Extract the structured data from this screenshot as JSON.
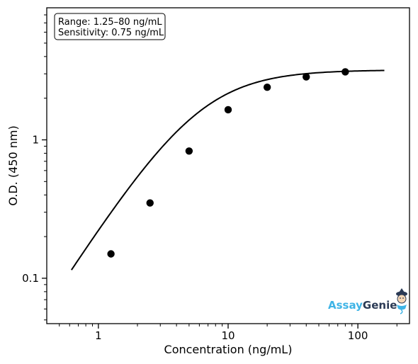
{
  "chart_data": {
    "type": "scatter",
    "xlabel": "Concentration (ng/mL)",
    "ylabel": "O.D. (450 nm)",
    "xscale": "log",
    "yscale": "log",
    "xlim": [
      0.4,
      250
    ],
    "ylim": [
      0.047,
      9
    ],
    "x_ticks": [
      1,
      10,
      100
    ],
    "x_tick_labels": [
      "1",
      "10",
      "100"
    ],
    "y_ticks": [
      0.1,
      1
    ],
    "y_tick_labels": [
      "0.1",
      "1"
    ],
    "grid": false,
    "series": [
      {
        "values": [
          {
            "x": 1.25,
            "y": 0.15
          },
          {
            "x": 2.5,
            "y": 0.35
          },
          {
            "x": 5,
            "y": 0.83
          },
          {
            "x": 10,
            "y": 1.65
          },
          {
            "x": 20,
            "y": 2.4
          },
          {
            "x": 40,
            "y": 2.85
          },
          {
            "x": 80,
            "y": 3.1
          }
        ]
      }
    ],
    "fit_curve": {
      "model": "4PL",
      "x_range": [
        0.62,
        160
      ],
      "bottom": 0,
      "top": 3.2,
      "ec50": 6.0,
      "hill": 1.45
    },
    "annotation": {
      "lines": [
        "Range: 1.25–80 ng/mL",
        "Sensitivity: 0.75 ng/mL"
      ],
      "position": "top-left"
    },
    "logo": {
      "text_a": "Assay",
      "text_b": "Genie",
      "color_a": "#3fb4e6",
      "color_b": "#2b3a55",
      "position": "bottom-right"
    }
  }
}
